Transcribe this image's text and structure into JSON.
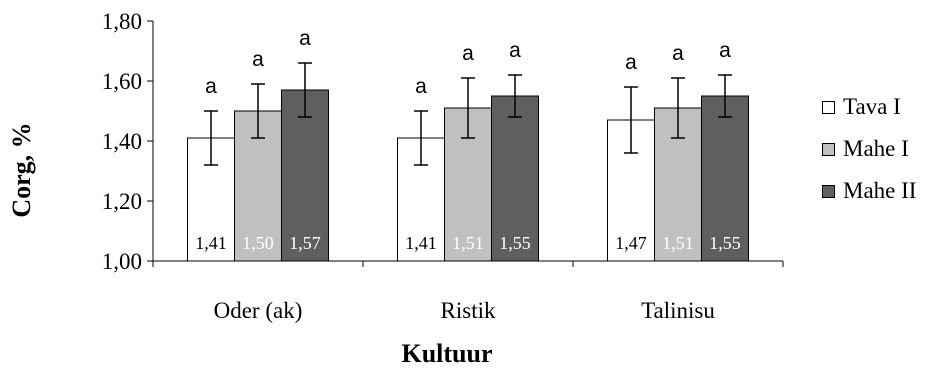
{
  "chart_data": {
    "type": "bar",
    "xlabel": "Kultuur",
    "ylabel": "Corg, %",
    "ylim": [
      1.0,
      1.8
    ],
    "yticks": [
      "1,00",
      "1,20",
      "1,40",
      "1,60",
      "1,80"
    ],
    "categories": [
      "Oder (ak)",
      "Ristik",
      "Talinisu"
    ],
    "series": [
      {
        "name": "Tava I",
        "color": "#ffffff",
        "label_color": "#000000",
        "values": [
          1.41,
          1.41,
          1.47
        ],
        "labels": [
          "1,41",
          "1,41",
          "1,47"
        ],
        "errors": [
          0.09,
          0.09,
          0.11
        ],
        "letters": [
          "a",
          "a",
          "a"
        ]
      },
      {
        "name": "Mahe I",
        "color": "#c0c0c0",
        "label_color": "#ffffff",
        "values": [
          1.5,
          1.51,
          1.51
        ],
        "labels": [
          "1,50",
          "1,51",
          "1,51"
        ],
        "errors": [
          0.09,
          0.1,
          0.1
        ],
        "letters": [
          "a",
          "a",
          "a"
        ]
      },
      {
        "name": "Mahe II",
        "color": "#5f5f5f",
        "label_color": "#ffffff",
        "values": [
          1.57,
          1.55,
          1.55
        ],
        "labels": [
          "1,57",
          "1,55",
          "1,55"
        ],
        "errors": [
          0.09,
          0.07,
          0.07
        ],
        "letters": [
          "a",
          "a",
          "a"
        ]
      }
    ],
    "legend_position": "right",
    "grid": false
  }
}
